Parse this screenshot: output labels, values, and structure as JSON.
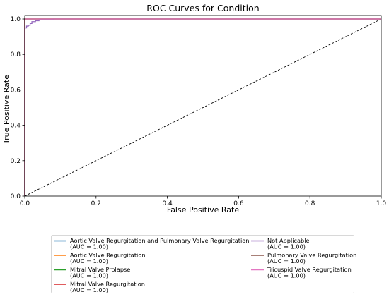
{
  "chart_data": {
    "type": "line",
    "title": "ROC Curves for Condition",
    "xlabel": "False Positive Rate",
    "ylabel": "True Positive Rate",
    "xlim": [
      0.0,
      1.0
    ],
    "ylim": [
      0.0,
      1.02
    ],
    "x_ticks": [
      "0.0",
      "0.2",
      "0.4",
      "0.6",
      "0.8",
      "1.0"
    ],
    "y_ticks": [
      "0.0",
      "0.2",
      "0.4",
      "0.6",
      "0.8",
      "1.0"
    ],
    "grid": false,
    "legend_position": "bottom-center",
    "series": [
      {
        "name": "Aortic Valve Regurgitation and Pulmonary Valve Regurgitation",
        "auc_label": "(AUC = 1.00)",
        "color": "#1f77b4",
        "x": [
          0,
          0,
          1
        ],
        "y": [
          0,
          1,
          1
        ]
      },
      {
        "name": "Aortic Valve Regurgitation",
        "auc_label": "(AUC = 1.00)",
        "color": "#ff7f0e",
        "x": [
          0,
          0,
          1
        ],
        "y": [
          0,
          1,
          1
        ]
      },
      {
        "name": "Mitral Valve Prolapse",
        "auc_label": "(AUC = 1.00)",
        "color": "#2ca02c",
        "x": [
          0,
          0,
          1
        ],
        "y": [
          0,
          1,
          1
        ]
      },
      {
        "name": "Mitral Valve Regurgitation",
        "auc_label": "(AUC = 1.00)",
        "color": "#d62728",
        "x": [
          0,
          0,
          1
        ],
        "y": [
          0,
          1,
          1
        ]
      },
      {
        "name": "Not Applicable",
        "auc_label": "(AUC = 1.00)",
        "color": "#9467bd",
        "x": [
          0,
          0,
          0.005,
          0.005,
          0.01,
          0.01,
          0.015,
          0.015,
          0.02,
          0.02,
          0.03,
          0.03,
          0.04,
          0.04,
          0.08,
          0.08,
          1
        ],
        "y": [
          0,
          0.95,
          0.95,
          0.96,
          0.96,
          0.965,
          0.965,
          0.975,
          0.975,
          0.985,
          0.985,
          0.99,
          0.99,
          0.995,
          0.995,
          1.0,
          1.0
        ]
      },
      {
        "name": "Pulmonary Valve Regurgitation",
        "auc_label": "(AUC = 1.00)",
        "color": "#8c564b",
        "x": [
          0,
          0,
          1
        ],
        "y": [
          0,
          1,
          1
        ]
      },
      {
        "name": "Tricuspid Valve Regurgitation",
        "auc_label": "(AUC = 1.00)",
        "color": "#e377c2",
        "x": [
          0,
          0,
          1
        ],
        "y": [
          0,
          1,
          1
        ]
      }
    ],
    "reference_line": {
      "x": [
        0,
        1
      ],
      "y": [
        0,
        1
      ],
      "color": "#000000",
      "style": "dashed"
    }
  }
}
